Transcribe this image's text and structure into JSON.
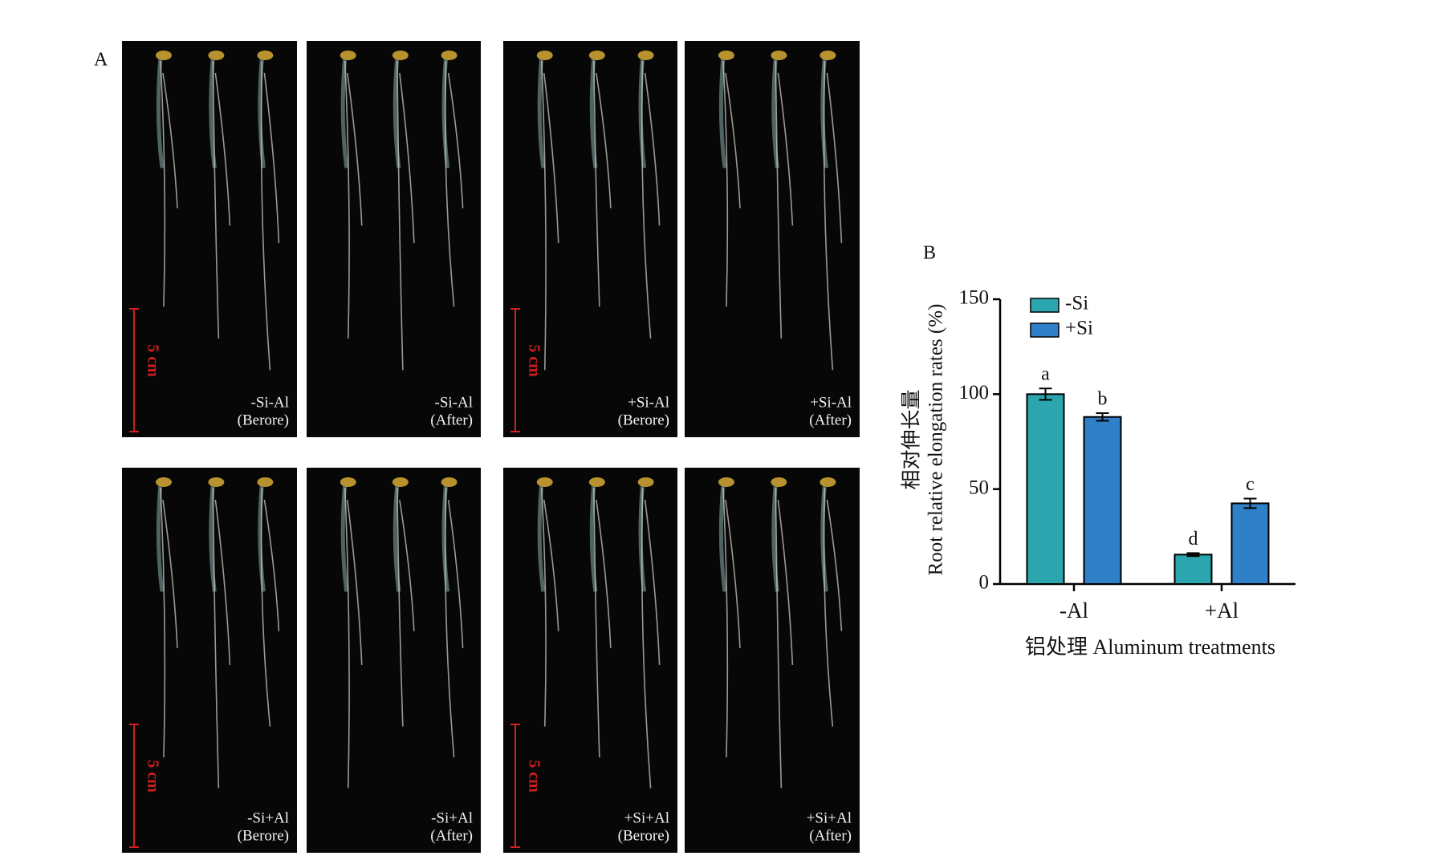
{
  "panel_a": {
    "label": "A",
    "images": [
      {
        "line1": "-Si-Al",
        "line2": "(Berore)",
        "scale_bar": "5 cm"
      },
      {
        "line1": "-Si-Al",
        "line2": "(After)"
      },
      {
        "line1": "+Si-Al",
        "line2": "(Berore)",
        "scale_bar": "5 cm"
      },
      {
        "line1": "+Si-Al",
        "line2": "(After)"
      },
      {
        "line1": "-Si+Al",
        "line2": "(Berore)",
        "scale_bar": "5 cm"
      },
      {
        "line1": "-Si+Al",
        "line2": "(After)"
      },
      {
        "line1": "+Si+Al",
        "line2": "(Berore)",
        "scale_bar": "5 cm"
      },
      {
        "line1": "+Si+Al",
        "line2": "(After)"
      }
    ]
  },
  "chart_data": {
    "type": "bar",
    "panel_label": "B",
    "ylabel": [
      "相对伸长量",
      "Root relative elongation rates (%)"
    ],
    "xlabel": "铝处理 Aluminum treatments",
    "categories": [
      "-Al",
      "+Al"
    ],
    "series": [
      {
        "name": "-Si",
        "color": "#2ba6ae",
        "values": [
          100,
          15.5
        ],
        "errors": [
          3,
          0.8
        ],
        "significance": [
          "a",
          "d"
        ]
      },
      {
        "name": "+Si",
        "color": "#2f7fc9",
        "values": [
          88,
          42.5
        ],
        "errors": [
          2,
          2.5
        ],
        "significance": [
          "b",
          "c"
        ]
      }
    ],
    "ylim": [
      0,
      150
    ],
    "yticks": [
      0,
      50,
      100,
      150
    ],
    "legend": "upper-left"
  }
}
